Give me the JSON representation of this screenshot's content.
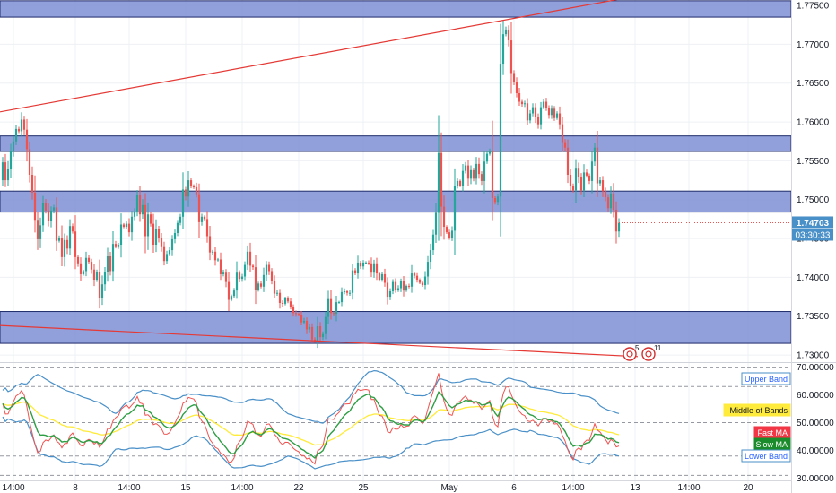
{
  "chart_data": {
    "type": "candlestick",
    "price_axis": {
      "ylim": [
        1.7292,
        1.7757
      ],
      "ticks": [
        "1.75000",
        "1.74500",
        "1.74000",
        "1.73500",
        "1.73000",
        "1.77500",
        "1.77000",
        "1.76500",
        "1.76000",
        "1.75500"
      ],
      "tick_values": [
        1.75,
        1.745,
        1.74,
        1.735,
        1.73,
        1.775,
        1.77,
        1.765,
        1.76,
        1.755
      ]
    },
    "oscillator_axis": {
      "ylim": [
        29.5,
        71.5
      ],
      "ticks": [
        "70.00000",
        "60.00000",
        "50.00000",
        "40.00000",
        "30.00000"
      ],
      "tick_values": [
        70,
        60,
        50,
        40,
        30
      ]
    },
    "x_axis": {
      "ticks": [
        "14:00",
        "8",
        "14:00",
        "15",
        "14:00",
        "22",
        "25",
        "May",
        "6",
        "14:00",
        "13",
        "14:00",
        "20"
      ],
      "tick_index": [
        4,
        27,
        47,
        68,
        89,
        110,
        134,
        166,
        190,
        212,
        235,
        255,
        277
      ]
    },
    "zones": [
      {
        "from": 1.7735,
        "to": 1.7756
      },
      {
        "from": 1.7562,
        "to": 1.7582
      },
      {
        "from": 1.7484,
        "to": 1.7511
      },
      {
        "from": 1.7315,
        "to": 1.7356
      }
    ],
    "trendlines": [
      {
        "i1": -1,
        "v1": 1.7613,
        "i2": 229,
        "v2": 1.7758
      },
      {
        "i1": -1,
        "v1": 1.7338,
        "i2": 236,
        "v2": 1.7298
      }
    ],
    "candles": {
      "start_open": 1.7525,
      "closes": [
        1.7548,
        1.7525,
        1.754,
        1.7563,
        1.7575,
        1.7591,
        1.7588,
        1.7603,
        1.759,
        1.7565,
        1.7532,
        1.7509,
        1.7474,
        1.7449,
        1.7467,
        1.7496,
        1.7486,
        1.7472,
        1.7486,
        1.749,
        1.7447,
        1.7451,
        1.7426,
        1.7448,
        1.7437,
        1.7466,
        1.7459,
        1.7426,
        1.7418,
        1.7404,
        1.7408,
        1.7425,
        1.742,
        1.741,
        1.7397,
        1.7407,
        1.7373,
        1.7391,
        1.7407,
        1.7427,
        1.7408,
        1.7443,
        1.744,
        1.7442,
        1.7468,
        1.7465,
        1.7469,
        1.7458,
        1.7478,
        1.7485,
        1.7506,
        1.7481,
        1.7493,
        1.7453,
        1.7481,
        1.7469,
        1.7442,
        1.7462,
        1.7451,
        1.744,
        1.7421,
        1.743,
        1.7435,
        1.7449,
        1.7457,
        1.747,
        1.7478,
        1.7513,
        1.7504,
        1.7525,
        1.7517,
        1.7516,
        1.7507,
        1.7471,
        1.7478,
        1.7475,
        1.7453,
        1.7432,
        1.7433,
        1.7422,
        1.7423,
        1.7404,
        1.7406,
        1.7394,
        1.7371,
        1.7376,
        1.7383,
        1.7406,
        1.7398,
        1.7401,
        1.7416,
        1.7433,
        1.7415,
        1.7413,
        1.7384,
        1.7392,
        1.7388,
        1.7403,
        1.7416,
        1.7408,
        1.7395,
        1.7379,
        1.738,
        1.7367,
        1.7366,
        1.7373,
        1.7369,
        1.7362,
        1.7354,
        1.7353,
        1.7352,
        1.7342,
        1.7344,
        1.7333,
        1.7336,
        1.732,
        1.7318,
        1.7337,
        1.7323,
        1.7327,
        1.7349,
        1.7372,
        1.7354,
        1.7353,
        1.7368,
        1.7368,
        1.7381,
        1.7382,
        1.738,
        1.738,
        1.7409,
        1.7405,
        1.7419,
        1.7414,
        1.7419,
        1.7419,
        1.7418,
        1.7406,
        1.7418,
        1.7405,
        1.7397,
        1.7404,
        1.7393,
        1.7375,
        1.7382,
        1.7394,
        1.7384,
        1.7386,
        1.7395,
        1.7383,
        1.7389,
        1.7388,
        1.7405,
        1.7402,
        1.7397,
        1.7393,
        1.739,
        1.7401,
        1.742,
        1.7435,
        1.7455,
        1.7483,
        1.756,
        1.7491,
        1.7465,
        1.7458,
        1.7451,
        1.746,
        1.7518,
        1.7524,
        1.7518,
        1.7537,
        1.7544,
        1.7527,
        1.7538,
        1.7527,
        1.7546,
        1.7533,
        1.7524,
        1.7549,
        1.7559,
        1.7563,
        1.7502,
        1.7497,
        1.7504,
        1.7675,
        1.7713,
        1.7719,
        1.7705,
        1.7663,
        1.7651,
        1.7637,
        1.7626,
        1.7623,
        1.7624,
        1.7602,
        1.7611,
        1.7619,
        1.7606,
        1.7597,
        1.7619,
        1.7626,
        1.7618,
        1.7609,
        1.7617,
        1.7605,
        1.7611,
        1.7597,
        1.7574,
        1.7567,
        1.7532,
        1.7517,
        1.7512,
        1.7541,
        1.7529,
        1.7512,
        1.7535,
        1.7531,
        1.7524,
        1.7549,
        1.7567,
        1.7521,
        1.7525,
        1.7511,
        1.7503,
        1.7489,
        1.7508,
        1.7487,
        1.7459,
        1.747
      ]
    },
    "indicator_labels": [
      "Upper Band",
      "Middle of Bands",
      "Fast MA",
      "Slow MA",
      "Lower Band"
    ],
    "price_badge": {
      "price": "1.74703",
      "countdown": "03:30:33"
    },
    "event_markers": [
      {
        "kind": "flag-icon",
        "count": "5",
        "index": 233
      },
      {
        "kind": "flag-icon",
        "count": "11",
        "index": 240
      }
    ],
    "colors": {
      "up": "#26a69a",
      "down": "#ef5350",
      "zone_fill": "#7e8ed4",
      "zone_border": "#1e2b6b",
      "trendline": "#e53935",
      "upper_band": "#4a90c8",
      "middle": "#ffeb3b",
      "fast_ma": "#ef5350",
      "slow_ma": "#2e9e44",
      "lower_band": "#4a90c8"
    }
  }
}
